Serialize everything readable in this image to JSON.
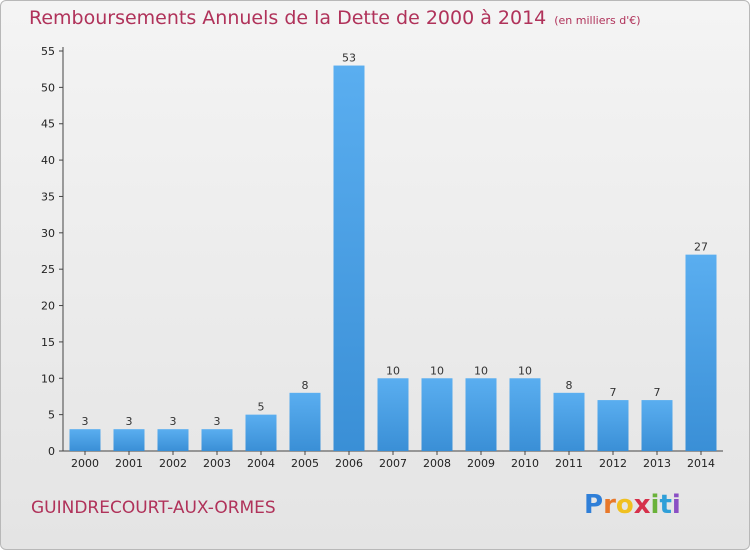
{
  "chart_data": {
    "type": "bar",
    "title": "Remboursements Annuels de la Dette de 2000 à 2014",
    "subtitle": "(en milliers d'€)",
    "categories": [
      "2000",
      "2001",
      "2002",
      "2003",
      "2004",
      "2005",
      "2006",
      "2007",
      "2008",
      "2009",
      "2010",
      "2011",
      "2012",
      "2013",
      "2014"
    ],
    "values": [
      3,
      3,
      3,
      3,
      5,
      8,
      53,
      10,
      10,
      10,
      10,
      8,
      7,
      7,
      27
    ],
    "ylim": [
      0,
      55
    ],
    "yticks": [
      0,
      5,
      10,
      15,
      20,
      25,
      30,
      35,
      40,
      45,
      50,
      55
    ],
    "bar_color": "#3a8fd6",
    "grid": false,
    "legend": "none"
  },
  "footer": {
    "commune": "GUINDRECOURT-AUX-ORMES",
    "logo_letters": [
      "P",
      "r",
      "o",
      "x",
      "i",
      "t",
      "i"
    ],
    "logo_colors": [
      "#2f7fd8",
      "#e8782a",
      "#f0c020",
      "#d6304a",
      "#6ab23a",
      "#2f9fd8",
      "#8a4fc4"
    ]
  }
}
